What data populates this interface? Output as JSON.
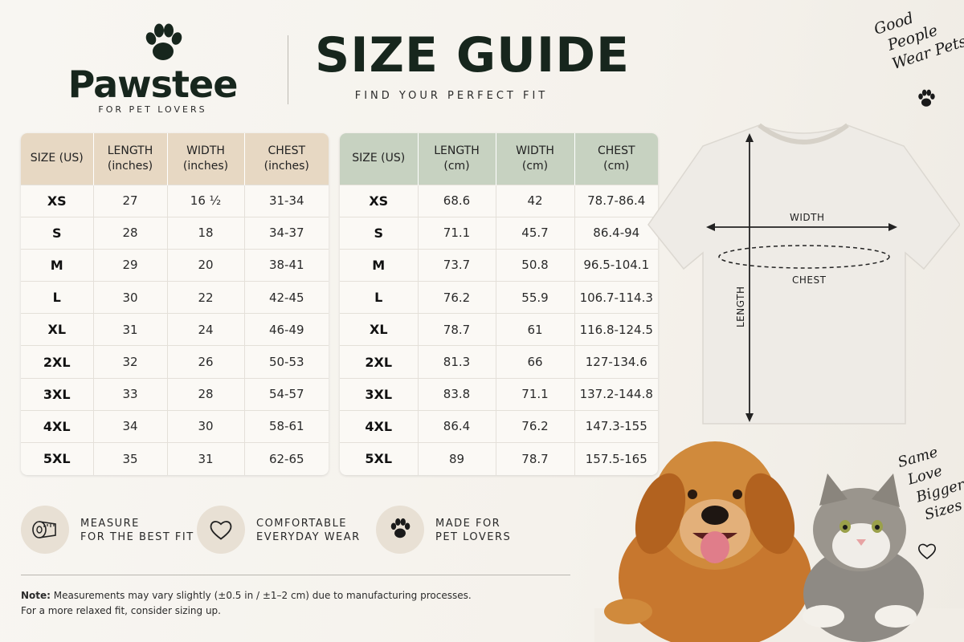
{
  "brand": {
    "name": "Pawstee",
    "tagline": "FOR PET LOVERS"
  },
  "header": {
    "title": "SIZE GUIDE",
    "subtitle": "FIND YOUR PERFECT FIT"
  },
  "table_inches": {
    "headers": [
      "SIZE (US)",
      "LENGTH (inches)",
      "WIDTH (inches)",
      "CHEST (inches)"
    ],
    "rows": [
      [
        "XS",
        "27",
        "16 ½",
        "31-34"
      ],
      [
        "S",
        "28",
        "18",
        "34-37"
      ],
      [
        "M",
        "29",
        "20",
        "38-41"
      ],
      [
        "L",
        "30",
        "22",
        "42-45"
      ],
      [
        "XL",
        "31",
        "24",
        "46-49"
      ],
      [
        "2XL",
        "32",
        "26",
        "50-53"
      ],
      [
        "3XL",
        "33",
        "28",
        "54-57"
      ],
      [
        "4XL",
        "34",
        "30",
        "58-61"
      ],
      [
        "5XL",
        "35",
        "31",
        "62-65"
      ]
    ]
  },
  "table_cm": {
    "headers": [
      "SIZE (US)",
      "LENGTH (cm)",
      "WIDTH (cm)",
      "CHEST (cm)"
    ],
    "rows": [
      [
        "XS",
        "68.6",
        "42",
        "78.7-86.4"
      ],
      [
        "S",
        "71.1",
        "45.7",
        "86.4-94"
      ],
      [
        "M",
        "73.7",
        "50.8",
        "96.5-104.1"
      ],
      [
        "L",
        "76.2",
        "55.9",
        "106.7-114.3"
      ],
      [
        "XL",
        "78.7",
        "61",
        "116.8-124.5"
      ],
      [
        "2XL",
        "81.3",
        "66",
        "127-134.6"
      ],
      [
        "3XL",
        "83.8",
        "71.1",
        "137.2-144.8"
      ],
      [
        "4XL",
        "86.4",
        "76.2",
        "147.3-155"
      ],
      [
        "5XL",
        "89",
        "78.7",
        "157.5-165"
      ]
    ]
  },
  "diagram": {
    "width_label": "WIDTH",
    "chest_label": "CHEST",
    "length_label": "LENGTH"
  },
  "slogans": {
    "top": [
      "Good",
      "People",
      "Wear Pets"
    ],
    "bottom": [
      "Same",
      "Love",
      "Bigger",
      "Sizes"
    ]
  },
  "features": [
    {
      "line1": "MEASURE",
      "line2": "FOR THE BEST FIT",
      "icon": "measuring-tape-icon"
    },
    {
      "line1": "COMFORTABLE",
      "line2": "EVERYDAY WEAR",
      "icon": "heart-icon"
    },
    {
      "line1": "MADE FOR",
      "line2": "PET LOVERS",
      "icon": "paw-icon"
    }
  ],
  "note": {
    "label": "Note:",
    "line1": " Measurements may vary slightly (±0.5 in / ±1–2 cm) due to manufacturing processes.",
    "line2": "For a more relaxed fit, consider sizing up."
  },
  "colors": {
    "brand_dark": "#17261d",
    "inches_header": "#e7d8c3",
    "cm_header": "#c7d2c1",
    "feature_circle": "#e8e0d4"
  }
}
